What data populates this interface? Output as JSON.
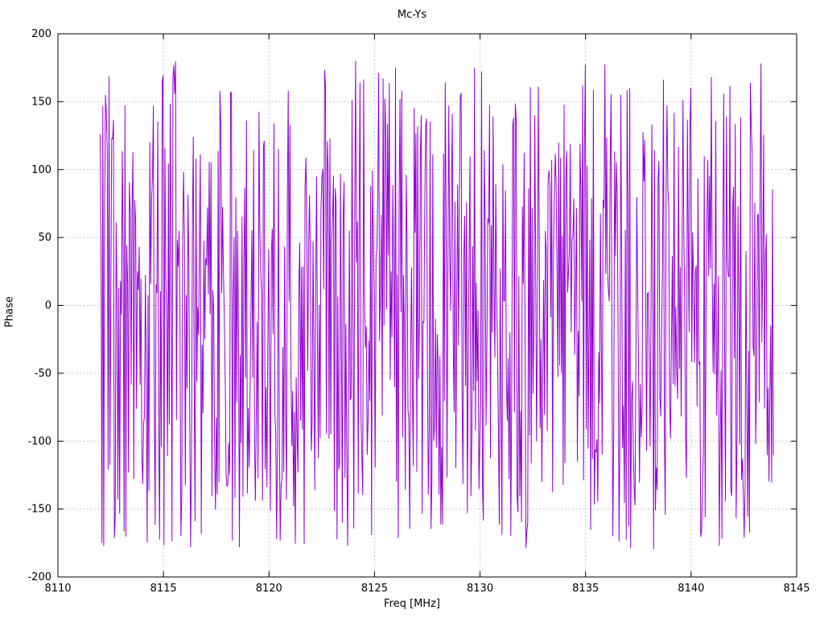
{
  "chart_data": {
    "type": "line",
    "title": "Mc-Ys",
    "xlabel": "Freq [MHz]",
    "ylabel": "Phase",
    "xlim": [
      8110,
      8145
    ],
    "ylim": [
      -200,
      200
    ],
    "xticks": [
      8110,
      8115,
      8120,
      8125,
      8130,
      8135,
      8140,
      8145
    ],
    "yticks": [
      -200,
      -150,
      -100,
      -50,
      0,
      50,
      100,
      150,
      200
    ],
    "grid": "dotted",
    "grid_color": "#b5b5b5",
    "axis_color": "#000000",
    "legend": "none",
    "series": [
      {
        "name": "Mc-Ys",
        "color": "#9400D3",
        "x_start": 8112.0,
        "x_end": 8143.9,
        "points": 760,
        "y_min": -180,
        "y_max": 180,
        "distribution": "uniform-random-phase-noise",
        "seed": 20240817
      }
    ],
    "note": "Trace is dense wrapped-phase noise spanning roughly -180 to +180 degrees across 8112-8143.9 MHz; individual sample values are not resolvable at screenshot scale and are regenerated deterministically from the stored seed."
  }
}
